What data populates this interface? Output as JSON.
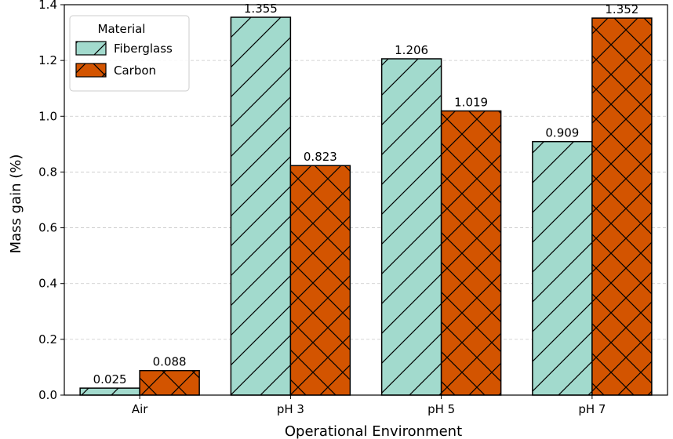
{
  "chart_data": {
    "type": "bar",
    "categories": [
      "Air",
      "pH 3",
      "pH 5",
      "pH 7"
    ],
    "series": [
      {
        "name": "Fiberglass",
        "values": [
          0.025,
          1.355,
          1.206,
          0.909
        ],
        "color": "#a2dacd",
        "hatch": "diagonal"
      },
      {
        "name": "Carbon",
        "values": [
          0.088,
          0.823,
          1.019,
          1.352
        ],
        "color": "#d35400",
        "hatch": "crosshatch"
      }
    ],
    "data_labels": [
      [
        "0.025",
        "1.355",
        "1.206",
        "0.909"
      ],
      [
        "0.088",
        "0.823",
        "1.019",
        "1.352"
      ]
    ],
    "xlabel": "Operational Environment",
    "ylabel": "Mass gain (%)",
    "ylim": [
      0,
      1.4
    ],
    "yticks": [
      "0.0",
      "0.2",
      "0.4",
      "0.6",
      "0.8",
      "1.0",
      "1.2",
      "1.4"
    ],
    "grid": "y-dashed",
    "legend": {
      "title": "Material",
      "position": "top-left"
    }
  }
}
